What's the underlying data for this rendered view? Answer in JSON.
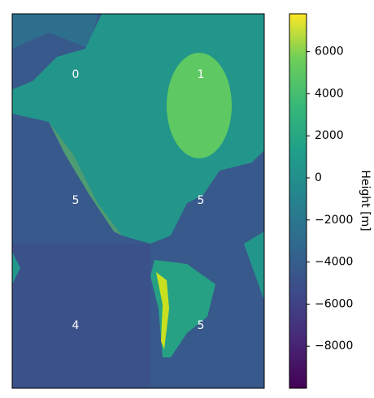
{
  "chart_data": {
    "type": "image",
    "colormap": "viridis",
    "annotations": [
      0,
      1,
      5,
      5,
      4,
      5
    ],
    "colorbar_label": "Height [m]",
    "clim": [
      -10000,
      7800
    ],
    "cticks": [
      6000,
      4000,
      2000,
      0,
      {
        "value": -2000,
        "label": "−2000"
      },
      {
        "value": -4000,
        "label": "−4000"
      },
      {
        "value": -6000,
        "label": "−6000"
      },
      {
        "value": -8000,
        "label": "−8000"
      }
    ]
  }
}
